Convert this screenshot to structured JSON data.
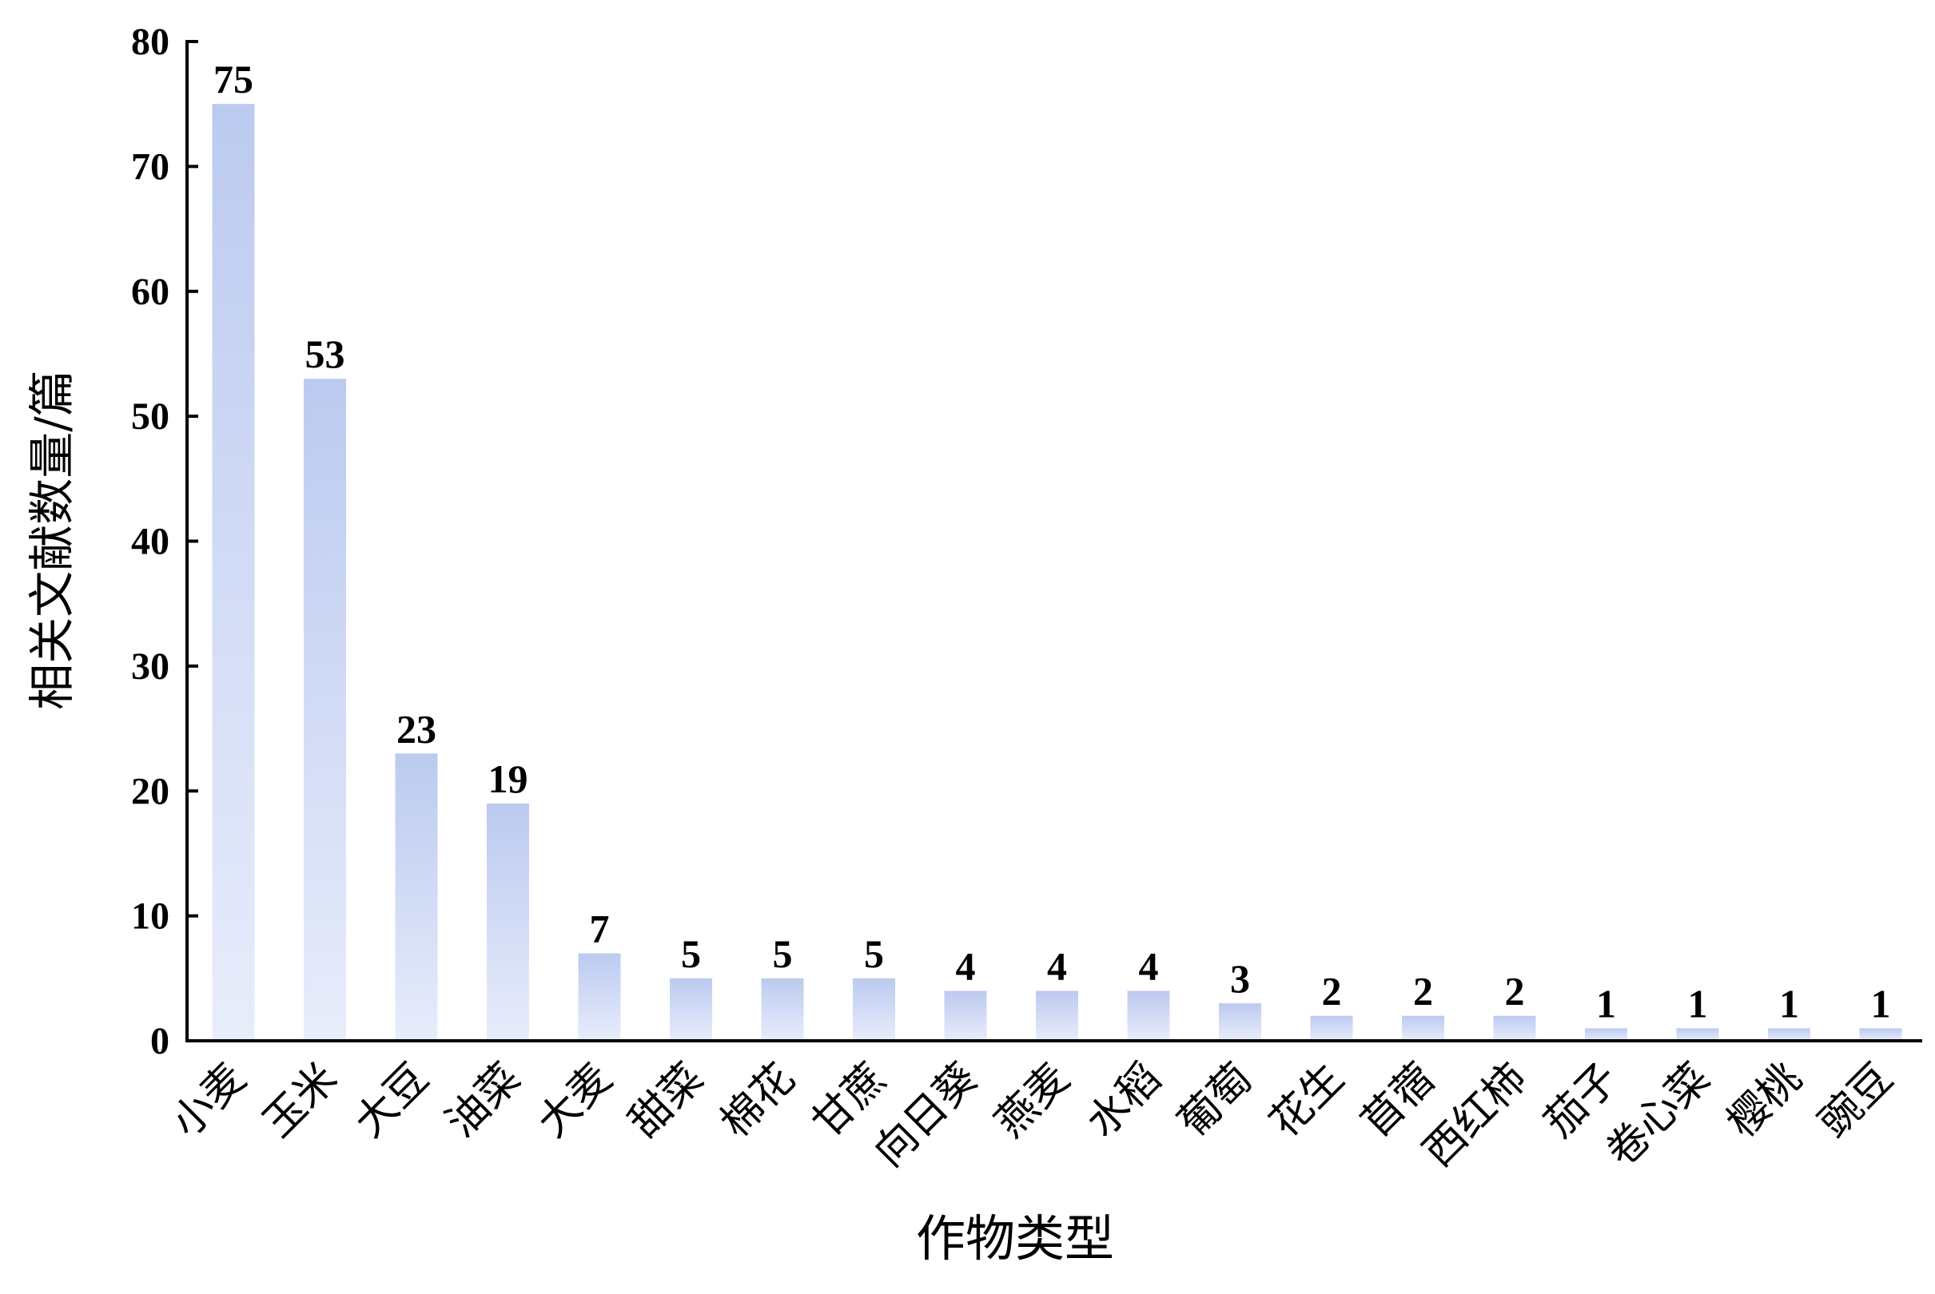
{
  "chart_data": {
    "type": "bar",
    "title": "",
    "xlabel": "作物类型",
    "ylabel": "相关文献数量/篇",
    "ylim": [
      0,
      80
    ],
    "yticks": [
      0,
      10,
      20,
      30,
      40,
      50,
      60,
      70,
      80
    ],
    "grid": false,
    "categories": [
      "小麦",
      "玉米",
      "大豆",
      "油菜",
      "大麦",
      "甜菜",
      "棉花",
      "甘蔗",
      "向日葵",
      "燕麦",
      "水稻",
      "葡萄",
      "花生",
      "苜蓿",
      "西红柿",
      "茄子",
      "卷心菜",
      "樱桃",
      "豌豆"
    ],
    "values": [
      75,
      53,
      23,
      19,
      7,
      5,
      5,
      5,
      4,
      4,
      4,
      3,
      2,
      2,
      2,
      1,
      1,
      1,
      1
    ],
    "data_labels": true,
    "colors": {
      "bar_top": "#bccaf0",
      "bar_bottom": "#e8edfb",
      "axis": "#000000"
    }
  }
}
